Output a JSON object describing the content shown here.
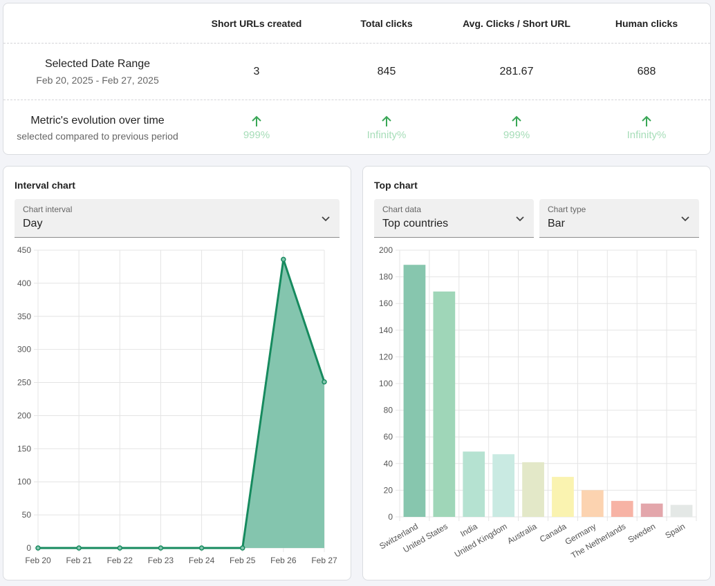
{
  "stats": {
    "headers": [
      "Short URLs created",
      "Total clicks",
      "Avg. Clicks / Short URL",
      "Human clicks"
    ],
    "range_row": {
      "title": "Selected Date Range",
      "subtitle": "Feb 20, 2025 - Feb 27, 2025",
      "values": [
        "3",
        "845",
        "281.67",
        "688"
      ]
    },
    "evolution_row": {
      "title": "Metric's evolution over time",
      "subtitle": "selected compared to previous period",
      "icon": "arrow-up-icon",
      "values": [
        "999%",
        "Infinity%",
        "999%",
        "Infinity%"
      ]
    },
    "accent_color": "#3aa757",
    "pct_color": "#a6ddb8"
  },
  "interval_chart": {
    "title": "Interval chart",
    "select": {
      "label": "Chart interval",
      "value": "Day"
    }
  },
  "top_chart": {
    "title": "Top chart",
    "data_select": {
      "label": "Chart data",
      "value": "Top countries"
    },
    "type_select": {
      "label": "Chart type",
      "value": "Bar"
    }
  },
  "chart_data": [
    {
      "type": "area",
      "categories": [
        "Feb 20",
        "Feb 21",
        "Feb 22",
        "Feb 23",
        "Feb 24",
        "Feb 25",
        "Feb 26",
        "Feb 27"
      ],
      "values": [
        0,
        0,
        0,
        0,
        0,
        0,
        436,
        251
      ],
      "ylim": [
        0,
        450
      ],
      "yticks": [
        0,
        50,
        100,
        150,
        200,
        250,
        300,
        350,
        400,
        450
      ],
      "grid": true,
      "line_color": "#168a5e",
      "fill_color": "#84c5ae"
    },
    {
      "type": "bar",
      "categories": [
        "Switzerland",
        "United States",
        "India",
        "United Kingdom",
        "Australia",
        "Canada",
        "Germany",
        "The Netherlands",
        "Sweden",
        "Spain"
      ],
      "values": [
        189,
        169,
        49,
        47,
        41,
        30,
        20,
        12,
        10,
        9
      ],
      "ylim": [
        0,
        200
      ],
      "yticks": [
        0,
        20,
        40,
        60,
        80,
        100,
        120,
        140,
        160,
        180,
        200
      ],
      "grid": true,
      "colors": [
        "#87c6ae",
        "#9fd6b8",
        "#b5e2d1",
        "#c9eae2",
        "#e3e8c8",
        "#faf3b0",
        "#fcd3b0",
        "#f7b3a5",
        "#e3a6ab",
        "#e4e8e6"
      ]
    }
  ]
}
